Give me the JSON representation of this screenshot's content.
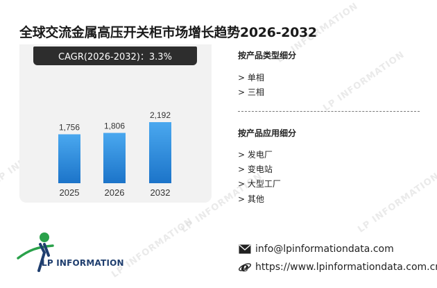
{
  "title": "全球交流金属高压开关柜市场增长趋势2026-2032",
  "cagr": "CAGR(2026-2032)：3.3%",
  "chart_data": {
    "type": "bar",
    "categories": [
      "2025",
      "2026",
      "2032"
    ],
    "values": [
      1756,
      1806,
      2192
    ],
    "value_labels": [
      "1,756",
      "1,806",
      "2,192"
    ],
    "bar_color": "#2f8fe0"
  },
  "segments": {
    "by_type": {
      "title": "按产品类型细分",
      "items": [
        "> 单相",
        "> 三相"
      ]
    },
    "by_application": {
      "title": "按产品应用细分",
      "items": [
        "> 发电厂",
        "> 变电站",
        "> 大型工厂",
        "> 其他"
      ]
    }
  },
  "logo": {
    "text": "LP INFORMATION"
  },
  "contact": {
    "email": "info@lpinformationdata.com",
    "website": "https://www.lpinformationdata.com.cn",
    "email_icon": "envelope-icon",
    "web_icon": "internet-explorer-icon"
  },
  "watermark": "LP INFORMATION",
  "colors": {
    "accent": "#2f8fe0",
    "dark": "#2d2d2d",
    "logo_blue": "#1f3e6e",
    "logo_green": "#2aa14a"
  }
}
